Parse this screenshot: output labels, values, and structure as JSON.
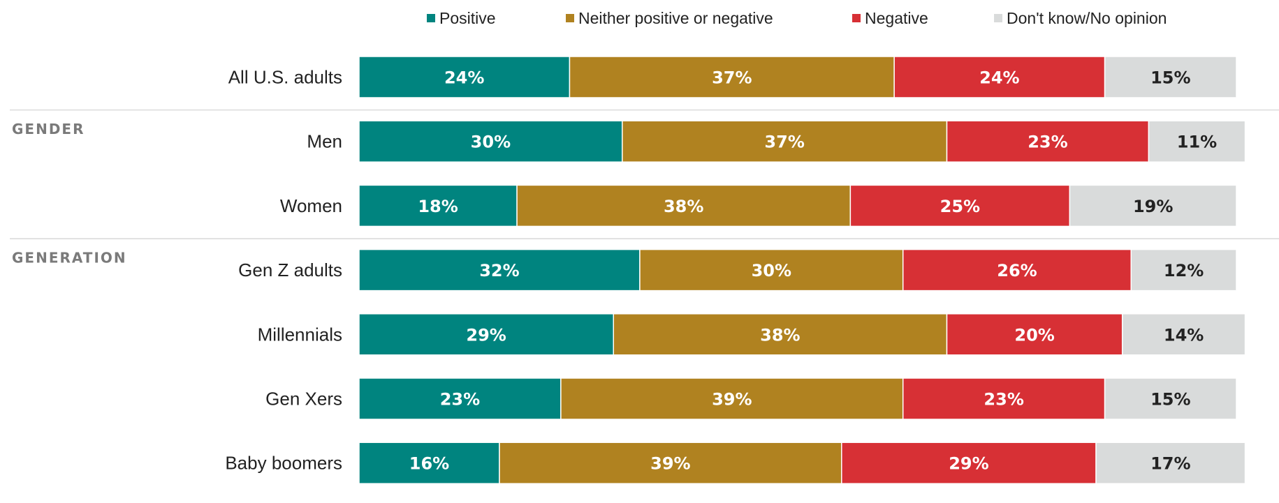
{
  "chart_data": {
    "type": "bar",
    "orientation": "horizontal",
    "stacked": true,
    "title": "",
    "xlabel": "",
    "ylabel": "",
    "xlim": [
      0,
      100
    ],
    "value_suffix": "%",
    "legend_position": "top",
    "grid": false,
    "categories": [
      "All U.S. adults",
      "Men",
      "Women",
      "Gen Z adults",
      "Millennials",
      "Gen Xers",
      "Baby boomers"
    ],
    "groups": [
      {
        "label": "",
        "rows": [
          "All U.S. adults"
        ]
      },
      {
        "label": "GENDER",
        "rows": [
          "Men",
          "Women"
        ]
      },
      {
        "label": "GENERATION",
        "rows": [
          "Gen Z adults",
          "Millennials",
          "Gen Xers",
          "Baby boomers"
        ]
      }
    ],
    "series": [
      {
        "name": "Positive",
        "color": "#00847f",
        "label_color": "#ffffff",
        "values": [
          24,
          30,
          18,
          32,
          29,
          23,
          16
        ]
      },
      {
        "name": "Neither positive or negative",
        "color": "#b08220",
        "label_color": "#ffffff",
        "values": [
          37,
          37,
          38,
          30,
          38,
          39,
          39
        ]
      },
      {
        "name": "Negative",
        "color": "#d73035",
        "label_color": "#ffffff",
        "values": [
          24,
          23,
          25,
          26,
          20,
          23,
          29
        ]
      },
      {
        "name": "Don't know/No opinion",
        "color": "#d9dbdb",
        "label_color": "#222222",
        "values": [
          15,
          11,
          19,
          12,
          14,
          15,
          17
        ]
      }
    ]
  }
}
